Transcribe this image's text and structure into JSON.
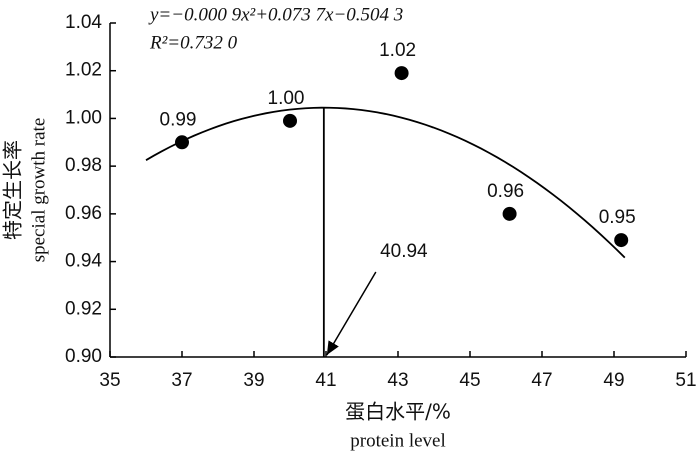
{
  "chart_data": {
    "type": "scatter",
    "equation": "y=−0.000 9x²+0.073 7x−0.504 3",
    "r_squared": "R²=0.732 0",
    "x_label": "蛋白水平/%",
    "x_label_en": "protein level",
    "y_label": "特定生长率",
    "y_label_en": "special growth rate",
    "x": [
      37,
      40,
      43.1,
      46.1,
      49.2
    ],
    "values": [
      0.99,
      0.999,
      1.019,
      0.96,
      0.949
    ],
    "value_labels": [
      "0.99",
      "1.00",
      "1.02",
      "0.96",
      "0.95"
    ],
    "color": "#000000",
    "fit": {
      "coefficients": [
        -0.0009,
        0.0737,
        -0.5043
      ],
      "xlim": [
        36,
        49.3
      ]
    },
    "annotation": {
      "text": 40.94,
      "x": 40.94
    },
    "xlim": [
      35,
      51
    ],
    "ylim": [
      0.9,
      1.04
    ],
    "xticks": [
      35,
      37,
      39,
      41,
      43,
      45,
      47,
      49,
      51
    ],
    "yticks": [
      {
        "value": 0.9,
        "label": "0.90"
      },
      0.92,
      0.94,
      0.96,
      0.98,
      {
        "value": 1,
        "label": "1.00"
      },
      1.02,
      1.04
    ]
  }
}
